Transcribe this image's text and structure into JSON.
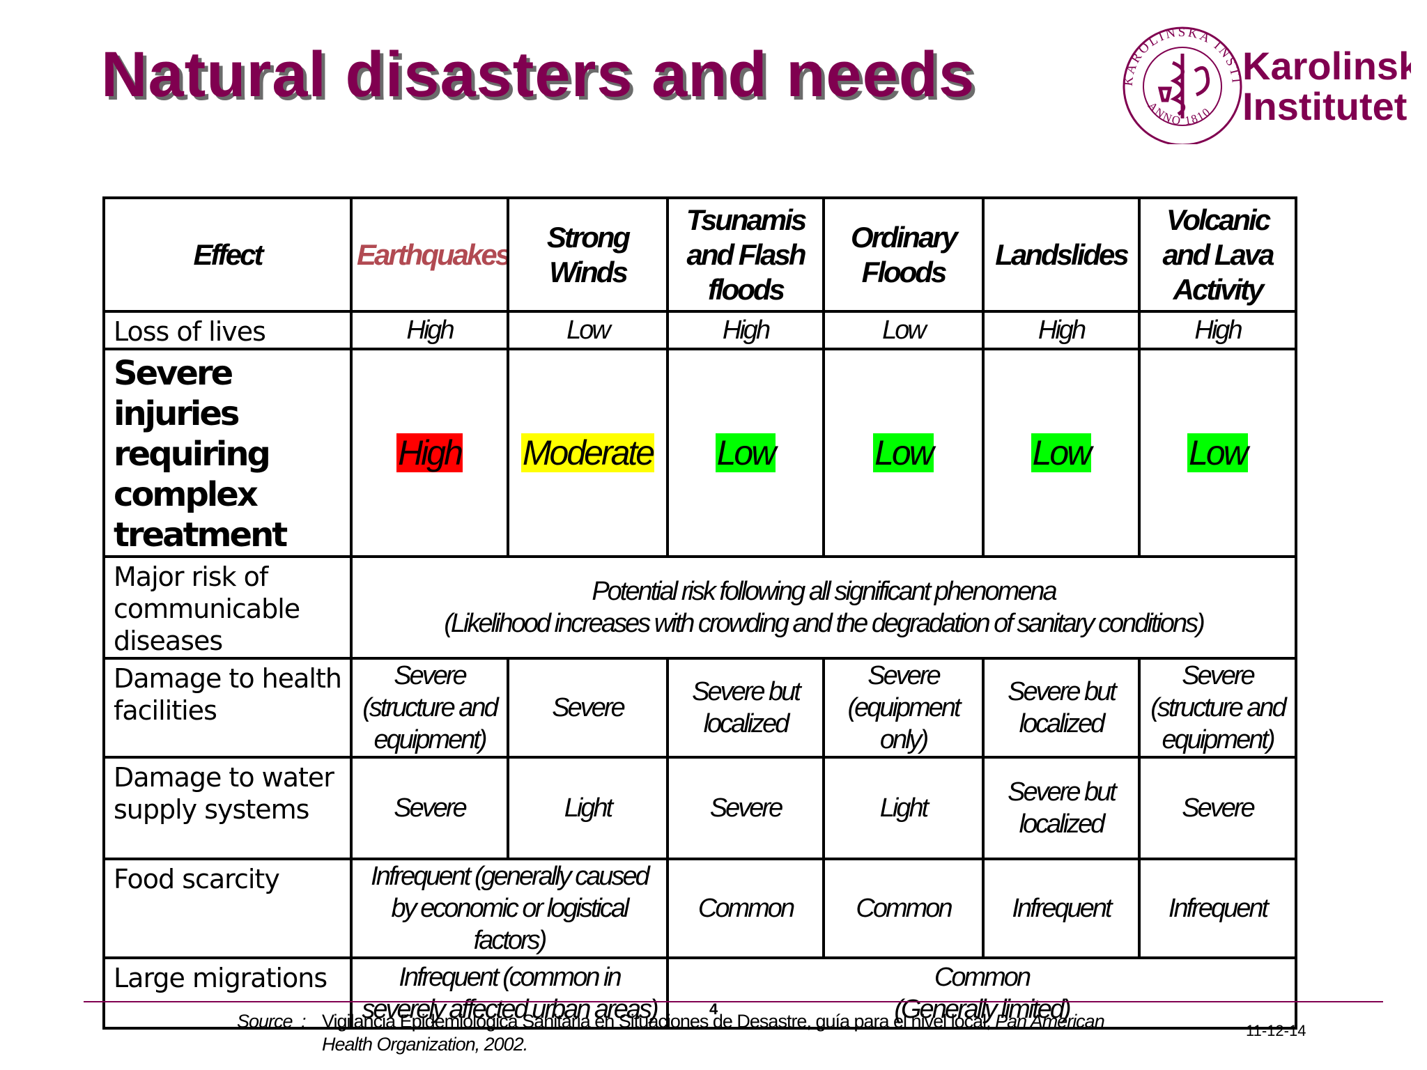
{
  "slide": {
    "title": "Natural disasters and needs",
    "page_number": "4",
    "date": "11-12-14",
    "colors": {
      "title": "#800050",
      "high": "#ff0000",
      "moderate": "#ffff00",
      "low": "#00ff00",
      "earthquakes_header": "#b14a52"
    }
  },
  "logo": {
    "name_line1": "Karolinska",
    "name_line2": "Institutet",
    "seal_text": "KAROLINSKA INSTITUTET",
    "seal_year": "ANNO 1810"
  },
  "table": {
    "headers": [
      "Effect",
      "Earthquakes",
      "Strong Winds",
      "Tsunamis and Flash floods",
      "Ordinary Floods",
      "Landslides",
      "Volcanic and Lava Activity"
    ],
    "loss_of_lives": {
      "label": "Loss of lives",
      "values": [
        "High",
        "Low",
        "High",
        "Low",
        "High",
        "High"
      ]
    },
    "severe_injuries": {
      "label": "Severe injuries requiring complex treatment",
      "values": [
        "High",
        "Moderate",
        "Low",
        "Low",
        "Low",
        "Low"
      ]
    },
    "communicable": {
      "label": "Major risk of communicable diseases",
      "line1": "Potential risk following all significant phenomena",
      "line2": "(Likelihood increases with crowding and the degradation of sanitary conditions)"
    },
    "health_facilities": {
      "label": "Damage to health facilities",
      "values": [
        "Severe (structure and equipment)",
        "Severe",
        "Severe but localized",
        "Severe (equipment only)",
        "Severe but localized",
        "Severe (structure and equipment)"
      ]
    },
    "water_supply": {
      "label": "Damage to water supply systems",
      "values": [
        "Severe",
        "Light",
        "Severe",
        "Light",
        "Severe but localized",
        "Severe"
      ]
    },
    "food_scarcity": {
      "label": "Food scarcity",
      "merged": "Infrequent (generally caused by economic or logistical factors)",
      "values": [
        "Common",
        "Common",
        "Infrequent",
        "Infrequent"
      ]
    },
    "migrations": {
      "label": "Large migrations",
      "merged_left": "Infrequent (common in severely affected urban areas)",
      "merged_right_line1": "Common",
      "merged_right_line2": "(Generally limited)"
    }
  },
  "source": {
    "label": "Source",
    "colon": ":",
    "text": "Vigilancia Epidemiológica Sanitaria en Situaciones de Desastre, guía para el nivel local,",
    "italic": "Pan American Health Organization, 2002."
  }
}
